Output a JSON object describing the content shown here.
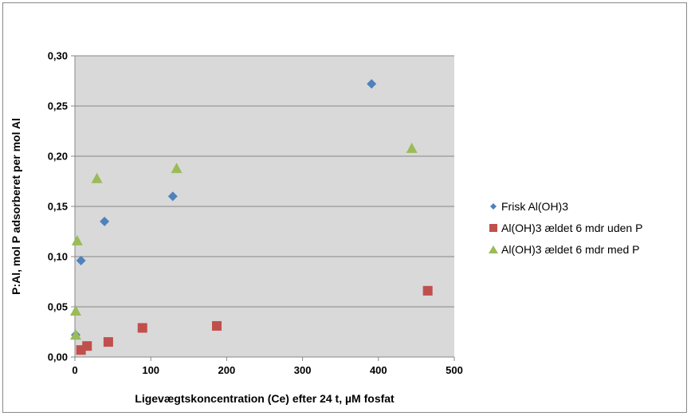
{
  "chart_data": {
    "type": "scatter",
    "xlabel": "Ligevægtskoncentration (Ce) efter 24 t, µM fosfat",
    "ylabel": "P:Al, mol P adsorberet per mol Al",
    "xlim": [
      0,
      500
    ],
    "ylim": [
      0,
      0.3
    ],
    "x_ticks": [
      "0",
      "100",
      "200",
      "300",
      "400",
      "500"
    ],
    "y_ticks": [
      "0,00",
      "0,05",
      "0,10",
      "0,15",
      "0,20",
      "0,25",
      "0,30"
    ],
    "grid": "horizontal",
    "plot_background": "#d9d9d9",
    "legend_position": "right",
    "series": [
      {
        "name": "Frisk Al(OH)3",
        "marker": "diamond",
        "color": "#4f81bd",
        "points": [
          [
            1,
            0.022
          ],
          [
            8,
            0.096
          ],
          [
            39,
            0.135
          ],
          [
            129,
            0.16
          ],
          [
            391,
            0.272
          ]
        ]
      },
      {
        "name": "Al(OH)3 ældet 6 mdr uden P",
        "marker": "square",
        "color": "#c0504d",
        "points": [
          [
            8,
            0.007
          ],
          [
            16,
            0.011
          ],
          [
            44,
            0.015
          ],
          [
            89,
            0.029
          ],
          [
            187,
            0.031
          ],
          [
            465,
            0.066
          ]
        ]
      },
      {
        "name": "Al(OH)3 ældet 6 mdr med P",
        "marker": "triangle",
        "color": "#9bbb59",
        "points": [
          [
            1,
            0.022
          ],
          [
            1,
            0.046
          ],
          [
            3,
            0.116
          ],
          [
            29,
            0.178
          ],
          [
            134,
            0.188
          ],
          [
            444,
            0.208
          ]
        ]
      }
    ]
  }
}
